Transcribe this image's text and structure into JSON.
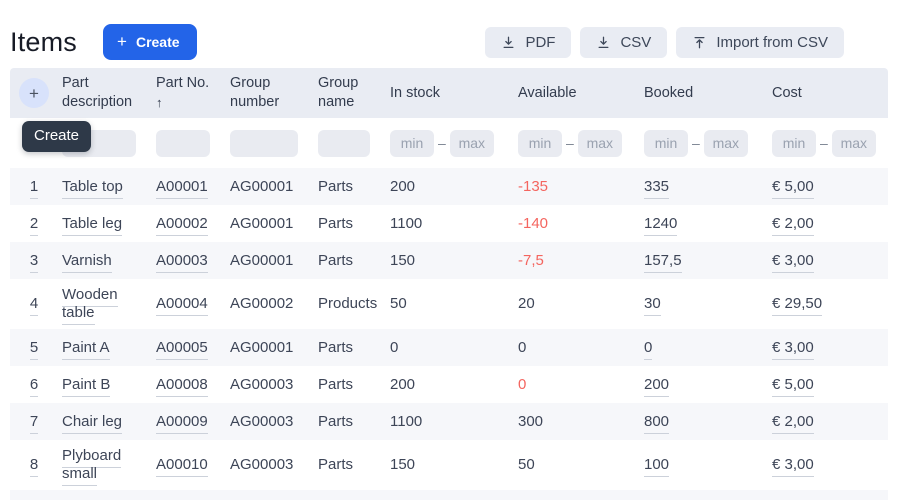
{
  "header": {
    "title": "Items",
    "create_button": "Create",
    "export_buttons": {
      "pdf": "PDF",
      "csv": "CSV",
      "import": "Import from CSV"
    }
  },
  "tooltip": "Create",
  "table": {
    "columns": [
      "",
      "Part description",
      "Part No.",
      "Group number",
      "Group name",
      "In stock",
      "Available",
      "Booked",
      "Cost"
    ],
    "sort_arrow": "↑",
    "filter": {
      "min": "min",
      "max": "max",
      "dash": "–"
    },
    "rows": [
      {
        "num": "1",
        "description": "Table top",
        "part_no": "A00001",
        "group_number": "AG00001",
        "group_name": "Parts",
        "in_stock": "200",
        "available": "-135",
        "available_red": true,
        "booked": "335",
        "cost": "€ 5,00"
      },
      {
        "num": "2",
        "description": "Table leg",
        "part_no": "A00002",
        "group_number": "AG00001",
        "group_name": "Parts",
        "in_stock": "1100",
        "available": "-140",
        "available_red": true,
        "booked": "1240",
        "cost": "€ 2,00"
      },
      {
        "num": "3",
        "description": "Varnish",
        "part_no": "A00003",
        "group_number": "AG00001",
        "group_name": "Parts",
        "in_stock": "150",
        "available": "-7,5",
        "available_red": true,
        "booked": "157,5",
        "cost": "€ 3,00"
      },
      {
        "num": "4",
        "description": "Wooden table",
        "part_no": "A00004",
        "group_number": "AG00002",
        "group_name": "Products",
        "in_stock": "50",
        "available": "20",
        "available_red": false,
        "booked": "30",
        "cost": "€ 29,50"
      },
      {
        "num": "5",
        "description": "Paint A",
        "part_no": "A00005",
        "group_number": "AG00001",
        "group_name": "Parts",
        "in_stock": "0",
        "available": "0",
        "available_red": false,
        "booked": "0",
        "cost": "€ 3,00"
      },
      {
        "num": "6",
        "description": "Paint B",
        "part_no": "A00008",
        "group_number": "AG00003",
        "group_name": "Parts",
        "in_stock": "200",
        "available": "0",
        "available_red": true,
        "booked": "200",
        "cost": "€ 5,00"
      },
      {
        "num": "7",
        "description": "Chair leg",
        "part_no": "A00009",
        "group_number": "AG00003",
        "group_name": "Parts",
        "in_stock": "1100",
        "available": "300",
        "available_red": false,
        "booked": "800",
        "cost": "€ 2,00"
      },
      {
        "num": "8",
        "description": "Plyboard small",
        "part_no": "A00010",
        "group_number": "AG00003",
        "group_name": "Parts",
        "in_stock": "150",
        "available": "50",
        "available_red": false,
        "booked": "100",
        "cost": "€ 3,00"
      }
    ]
  },
  "colors": {
    "accent_blue": "#2364e8",
    "negative_red": "#f4655f",
    "header_band": "#e9ecf3",
    "tooltip_bg": "#2e3948",
    "row_stripe": "#f6f7fa"
  }
}
